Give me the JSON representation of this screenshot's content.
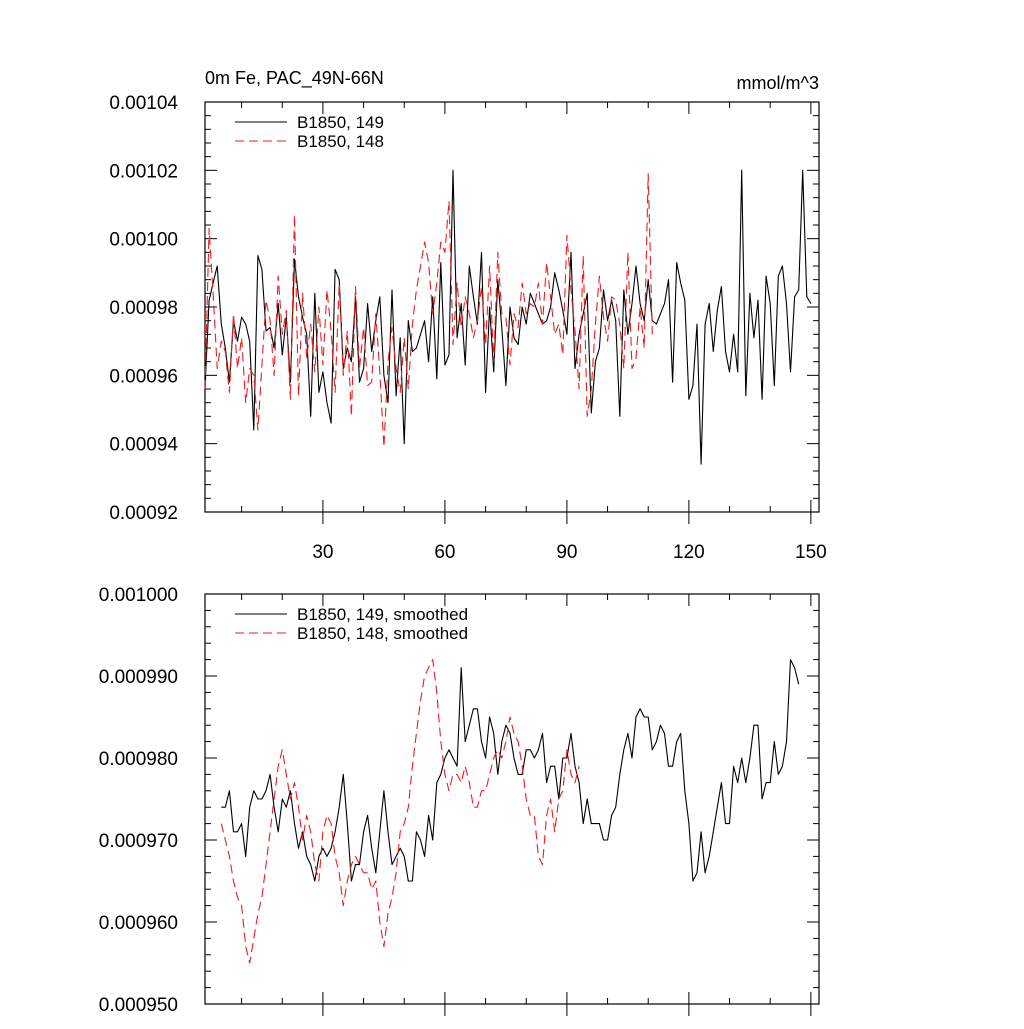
{
  "chart_data": [
    {
      "type": "line",
      "title": "0m Fe, PAC_49N-66N",
      "units": "mmol/m^3",
      "xlabel": "",
      "ylabel": "",
      "xlim": [
        1,
        152
      ],
      "ylim": [
        0.00092,
        0.00104
      ],
      "yticks": [
        "0.00092",
        "0.00094",
        "0.00096",
        "0.00098",
        "0.00100",
        "0.00102",
        "0.00104"
      ],
      "xticks": [
        "30",
        "60",
        "90",
        "120",
        "150"
      ],
      "legend_position": "top-left",
      "series": [
        {
          "name": "B1850, 149",
          "color": "#000000",
          "dash": "solid",
          "x_start": 1,
          "values": [
            0.000956,
            0.000982,
            0.000987,
            0.000992,
            0.000975,
            0.000968,
            0.000958,
            0.000976,
            0.00097,
            0.000977,
            0.000975,
            0.00097,
            0.000944,
            0.000995,
            0.000991,
            0.000973,
            0.000974,
            0.000968,
            0.000981,
            0.000966,
            0.000977,
            0.000958,
            0.000994,
            0.000983,
            0.000977,
            0.000972,
            0.000948,
            0.000984,
            0.000955,
            0.000961,
            0.000952,
            0.000946,
            0.000991,
            0.000988,
            0.000962,
            0.000968,
            0.000964,
            0.000983,
            0.000958,
            0.000962,
            0.000981,
            0.000967,
            0.000976,
            0.000983,
            0.00096,
            0.000952,
            0.000985,
            0.000954,
            0.000971,
            0.00094,
            0.000976,
            0.000967,
            0.000968,
            0.000972,
            0.000976,
            0.000964,
            0.000983,
            0.000959,
            0.000993,
            0.000963,
            0.000966,
            0.00102,
            0.000971,
            0.000981,
            0.000963,
            0.000992,
            0.000983,
            0.000975,
            0.000996,
            0.000955,
            0.00098,
            0.000961,
            0.000988,
            0.000974,
            0.000957,
            0.00098,
            0.000971,
            0.000969,
            0.00098,
            0.000975,
            0.000984,
            0.000981,
            0.000978,
            0.000975,
            0.000976,
            0.00098,
            0.00099,
            0.000985,
            0.000979,
            0.000972,
            0.000996,
            0.000962,
            0.000972,
            0.000978,
            0.000984,
            0.000949,
            0.000964,
            0.000968,
            0.000985,
            0.000976,
            0.000982,
            0.000976,
            0.000948,
            0.000985,
            0.000972,
            0.000981,
            0.000992,
            0.000981,
            0.000976,
            0.000988,
            0.000976,
            0.000975,
            0.000978,
            0.000981,
            0.000988,
            0.000958,
            0.000993,
            0.000987,
            0.000982,
            0.000953,
            0.000957,
            0.000975,
            0.000934,
            0.000975,
            0.000981,
            0.000967,
            0.000979,
            0.000986,
            0.000967,
            0.000961,
            0.000972,
            0.000961,
            0.00102,
            0.000954,
            0.000984,
            0.000971,
            0.000982,
            0.000953,
            0.000989,
            0.000981,
            0.000957,
            0.000989,
            0.000992,
            0.000981,
            0.000961,
            0.000983,
            0.000985,
            0.00102,
            0.000983,
            0.000981
          ]
        },
        {
          "name": "B1850, 148",
          "color": "#ee1c1c",
          "dash": "9,5",
          "x_start": 1,
          "values": [
            0.000956,
            0.001003,
            0.000984,
            0.000962,
            0.00097,
            0.000967,
            0.000955,
            0.000978,
            0.000962,
            0.000971,
            0.000952,
            0.000962,
            0.00096,
            0.000944,
            0.000963,
            0.000982,
            0.000976,
            0.00096,
            0.000989,
            0.000972,
            0.000979,
            0.000953,
            0.001007,
            0.000954,
            0.000984,
            0.000965,
            0.000975,
            0.000961,
            0.00098,
            0.000963,
            0.000985,
            0.000973,
            0.000955,
            0.000987,
            0.00096,
            0.000973,
            0.000948,
            0.000986,
            0.000962,
            0.000974,
            0.000957,
            0.000958,
            0.000978,
            0.000961,
            0.000939,
            0.000964,
            0.000974,
            0.000962,
            0.000955,
            0.000971,
            0.000956,
            0.000975,
            0.000985,
            0.000992,
            0.000999,
            0.000993,
            0.000978,
            0.000987,
            0.000999,
            0.000996,
            0.001011,
            0.000969,
            0.000987,
            0.000974,
            0.000983,
            0.000978,
            0.000971,
            0.000976,
            0.000986,
            0.000969,
            0.000992,
            0.000964,
            0.000996,
            0.000978,
            0.000977,
            0.000963,
            0.000978,
            0.000974,
            0.000987,
            0.000978,
            0.000981,
            0.00098,
            0.000987,
            0.000975,
            0.000993,
            0.000983,
            0.000972,
            0.000975,
            0.000966,
            0.001001,
            0.000985,
            0.000973,
            0.000956,
            0.000995,
            0.000948,
            0.000956,
            0.000975,
            0.000989,
            0.000977,
            0.00097,
            0.000983,
            0.000982,
            0.000975,
            0.000962,
            0.000996,
            0.000962,
            0.000965,
            0.00098,
            0.000968,
            0.001019,
            0.000972
          ]
        }
      ]
    },
    {
      "type": "line",
      "xlim": [
        1,
        152
      ],
      "ylim": [
        0.00095,
        0.001
      ],
      "yticks": [
        "0.000950",
        "0.000960",
        "0.000970",
        "0.000980",
        "0.000990",
        "0.001000"
      ],
      "legend_position": "top-left",
      "series": [
        {
          "name": "B1850, 149, smoothed",
          "color": "#000000",
          "dash": "solid",
          "x_start": 5,
          "values": [
            0.000974,
            0.000974,
            0.000976,
            0.000971,
            0.000971,
            0.000972,
            0.000968,
            0.000974,
            0.000976,
            0.000975,
            0.000975,
            0.000976,
            0.000978,
            0.000974,
            0.000971,
            0.000975,
            0.000974,
            0.000976,
            0.000972,
            0.000969,
            0.000971,
            0.000968,
            0.000967,
            0.000965,
            0.000968,
            0.000969,
            0.000968,
            0.000969,
            0.000971,
            0.000974,
            0.000978,
            0.000972,
            0.000965,
            0.000967,
            0.000967,
            0.000971,
            0.000973,
            0.000969,
            0.000966,
            0.000971,
            0.000976,
            0.000971,
            0.000967,
            0.000968,
            0.000969,
            0.000968,
            0.000965,
            0.000965,
            0.000971,
            0.00097,
            0.000968,
            0.000973,
            0.00097,
            0.000977,
            0.000978,
            0.00098,
            0.000981,
            0.00098,
            0.000979,
            0.000991,
            0.000982,
            0.000984,
            0.000986,
            0.000986,
            0.000982,
            0.00098,
            0.000985,
            0.000983,
            0.000978,
            0.000982,
            0.000984,
            0.000983,
            0.00098,
            0.000978,
            0.000978,
            0.000981,
            0.000981,
            0.00098,
            0.000981,
            0.000983,
            0.000977,
            0.000979,
            0.000979,
            0.000975,
            0.00098,
            0.00098,
            0.000983,
            0.000979,
            0.000977,
            0.000972,
            0.000975,
            0.000972,
            0.000972,
            0.000972,
            0.00097,
            0.00097,
            0.000973,
            0.000974,
            0.000978,
            0.000981,
            0.000983,
            0.00098,
            0.000985,
            0.000986,
            0.000985,
            0.000985,
            0.000981,
            0.000982,
            0.000984,
            0.000983,
            0.000979,
            0.000979,
            0.000982,
            0.000983,
            0.000976,
            0.000972,
            0.000965,
            0.000966,
            0.000971,
            0.000966,
            0.000968,
            0.000971,
            0.000974,
            0.000977,
            0.000972,
            0.000972,
            0.000979,
            0.000977,
            0.00098,
            0.000977,
            0.00098,
            0.000984,
            0.000984,
            0.000975,
            0.000977,
            0.000977,
            0.000982,
            0.000978,
            0.000979,
            0.000982,
            0.000992,
            0.000991,
            0.000989
          ]
        },
        {
          "name": "B1850, 148, smoothed",
          "color": "#ee1c1c",
          "dash": "9,5",
          "x_start": 5,
          "values": [
            0.000972,
            0.00097,
            0.000968,
            0.000965,
            0.000963,
            0.000962,
            0.000957,
            0.000955,
            0.000958,
            0.000961,
            0.000963,
            0.000967,
            0.000971,
            0.000975,
            0.000979,
            0.000981,
            0.000978,
            0.000975,
            0.000977,
            0.000974,
            0.00097,
            0.000973,
            0.000971,
            0.000967,
            0.000965,
            0.000971,
            0.000973,
            0.000972,
            0.000968,
            0.000966,
            0.000962,
            0.000965,
            0.000967,
            0.000968,
            0.000967,
            0.000966,
            0.000966,
            0.000964,
            0.000965,
            0.00096,
            0.000957,
            0.000961,
            0.000963,
            0.000966,
            0.000971,
            0.000972,
            0.000974,
            0.000979,
            0.000983,
            0.000987,
            0.00099,
            0.000991,
            0.000992,
            0.000988,
            0.000982,
            0.000978,
            0.000976,
            0.000978,
            0.000978,
            0.000977,
            0.000979,
            0.000977,
            0.000974,
            0.000974,
            0.000976,
            0.000976,
            0.000978,
            0.00098,
            0.000981,
            0.00098,
            0.000982,
            0.000985,
            0.000983,
            0.000982,
            0.000979,
            0.000975,
            0.000973,
            0.000973,
            0.000968,
            0.000967,
            0.000973,
            0.000975,
            0.000971,
            0.000975,
            0.000976,
            0.000981,
            0.000978,
            0.000977,
            0.000979
          ]
        }
      ]
    }
  ]
}
